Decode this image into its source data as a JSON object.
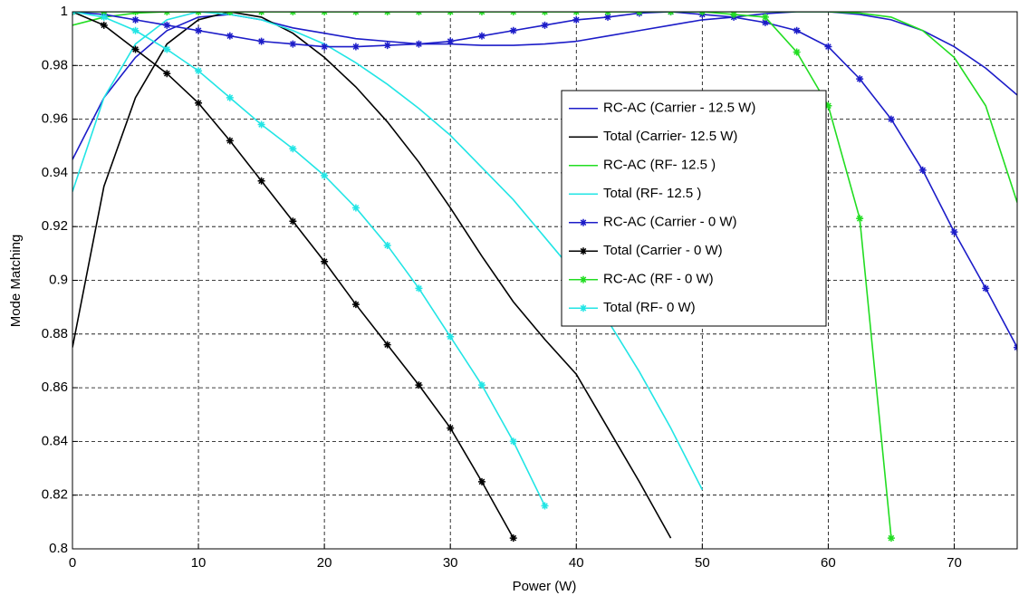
{
  "chart_data": {
    "type": "line",
    "xlabel": "Power (W)",
    "ylabel": "Mode Matching",
    "x": [
      0,
      2.5,
      5,
      7.5,
      10,
      12.5,
      15,
      17.5,
      20,
      22.5,
      25,
      27.5,
      30,
      32.5,
      35,
      37.5,
      40,
      42.5,
      45,
      47.5,
      50,
      52.5,
      55,
      57.5,
      60,
      62.5,
      65,
      67.5,
      70,
      72.5,
      75
    ],
    "xlim": [
      0,
      75
    ],
    "xticks": [
      0,
      10,
      20,
      30,
      40,
      50,
      60,
      70
    ],
    "ylim": [
      0.8,
      1
    ],
    "yticks": [
      0.8,
      0.82,
      0.84,
      0.86,
      0.88,
      0.9,
      0.92,
      0.94,
      0.96,
      0.98,
      1
    ],
    "grid": true,
    "legend": "center right",
    "series": [
      {
        "name": "RC-AC (Carrier - 12.5 W)",
        "color": "#1c1cc8",
        "marker": "none",
        "values": [
          0.945,
          0.968,
          0.983,
          0.993,
          0.998,
          0.999,
          0.997,
          0.994,
          0.992,
          0.99,
          0.989,
          0.988,
          0.988,
          0.9875,
          0.9875,
          0.988,
          0.989,
          0.991,
          0.993,
          0.995,
          0.997,
          0.998,
          0.9993,
          1,
          1,
          0.999,
          0.997,
          0.993,
          0.987,
          0.979,
          0.969
        ]
      },
      {
        "name": "Total (Carrier- 12.5 W)",
        "color": "#000000",
        "marker": "none",
        "values": [
          0.875,
          0.935,
          0.968,
          0.988,
          0.997,
          1,
          0.998,
          0.992,
          0.983,
          0.972,
          0.959,
          0.944,
          0.927,
          0.909,
          0.892,
          0.878,
          0.865,
          0.845,
          0.825,
          0.804,
          null,
          null,
          null,
          null,
          null,
          null,
          null,
          null,
          null,
          null,
          null
        ]
      },
      {
        "name": "RC-AC (RF- 12.5 )",
        "color": "#22dd22",
        "marker": "none",
        "values": [
          0.995,
          0.998,
          0.9995,
          1,
          1,
          1,
          1,
          1,
          1,
          1,
          1,
          1,
          1,
          1,
          1,
          1,
          1,
          1,
          1,
          1,
          1,
          1,
          1,
          1,
          1,
          0.9995,
          0.998,
          0.993,
          0.983,
          0.965,
          0.929
        ]
      },
      {
        "name": "Total (RF- 12.5 )",
        "color": "#22e5e5",
        "marker": "none",
        "values": [
          0.933,
          0.968,
          0.988,
          0.997,
          1,
          0.999,
          0.997,
          0.993,
          0.988,
          0.981,
          0.973,
          0.964,
          0.954,
          0.942,
          0.93,
          0.916,
          0.902,
          0.885,
          0.866,
          0.845,
          0.822,
          null,
          null,
          null,
          null,
          null,
          null,
          null,
          null,
          null,
          null
        ]
      },
      {
        "name": "RC-AC (Carrier - 0 W)",
        "color": "#1c1cc8",
        "marker": "star",
        "values": [
          1,
          0.999,
          0.997,
          0.995,
          0.993,
          0.991,
          0.989,
          0.988,
          0.987,
          0.987,
          0.9875,
          0.988,
          0.989,
          0.991,
          0.993,
          0.995,
          0.997,
          0.998,
          0.9995,
          1,
          0.999,
          0.998,
          0.996,
          0.993,
          0.987,
          0.975,
          0.96,
          0.941,
          0.918,
          0.897,
          0.875
        ]
      },
      {
        "name": "Total (Carrier - 0 W)",
        "color": "#000000",
        "marker": "star",
        "values": [
          1,
          0.995,
          0.986,
          0.977,
          0.966,
          0.952,
          0.937,
          0.922,
          0.907,
          0.891,
          0.876,
          0.861,
          0.845,
          0.825,
          0.804,
          null,
          null,
          null,
          null,
          null,
          null,
          null,
          null,
          null,
          null,
          null,
          null,
          null,
          null,
          null,
          null
        ]
      },
      {
        "name": "RC-AC (RF - 0 W)",
        "color": "#22dd22",
        "marker": "star",
        "values": [
          1,
          1,
          1,
          1,
          1,
          1,
          1,
          1,
          1,
          1,
          1,
          1,
          1,
          1,
          1,
          1,
          1,
          1,
          1,
          1,
          1,
          0.999,
          0.998,
          0.985,
          0.965,
          0.923,
          0.804,
          null,
          null,
          null,
          null
        ]
      },
      {
        "name": "Total (RF- 0 W)",
        "color": "#22e5e5",
        "marker": "star",
        "values": [
          1,
          0.998,
          0.993,
          0.986,
          0.978,
          0.968,
          0.958,
          0.949,
          0.939,
          0.927,
          0.913,
          0.897,
          0.879,
          0.861,
          0.84,
          0.816,
          null,
          null,
          null,
          null,
          null,
          null,
          null,
          null,
          null,
          null,
          null,
          null,
          null,
          null,
          null
        ]
      }
    ]
  }
}
